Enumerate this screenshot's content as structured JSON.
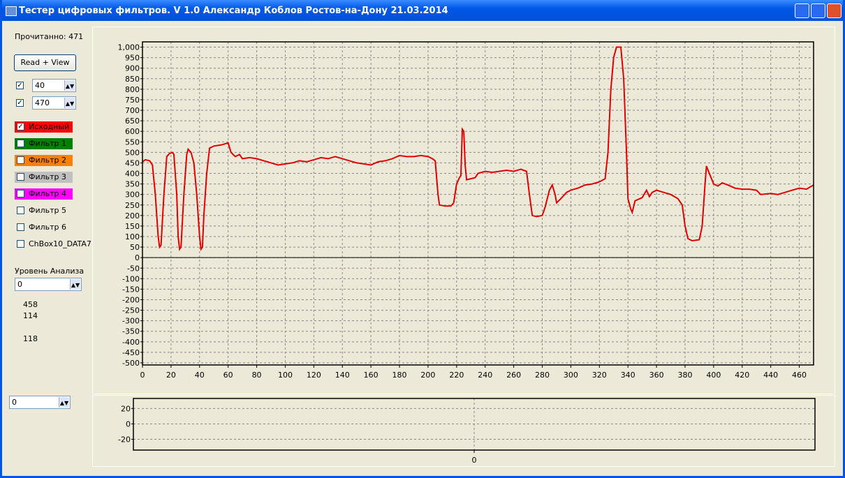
{
  "window": {
    "title": "Тестер цифровых фильтров. V 1.0 Александр Коблов Ростов-на-Дону 21.03.2014"
  },
  "panel": {
    "read_count": "Прочитанно: 471",
    "button": "Read + View",
    "spins": [
      {
        "checked": true,
        "value": "40"
      },
      {
        "checked": true,
        "value": "470"
      }
    ],
    "filters": [
      {
        "label": "Исходный",
        "color": "#ff0000",
        "checked": true
      },
      {
        "label": "Фильтр 1",
        "color": "#008000",
        "checked": false
      },
      {
        "label": "Фильтр 2",
        "color": "#ff8000",
        "checked": false
      },
      {
        "label": "Фильтр 3",
        "color": "#c0c0c0",
        "checked": false
      },
      {
        "label": "Фильтр 4",
        "color": "#ff00ff",
        "checked": false
      },
      {
        "label": "Фильтр 5",
        "color": null,
        "checked": false
      },
      {
        "label": "Фильтр 6",
        "color": null,
        "checked": false
      },
      {
        "label": "ChBox10_DATA7",
        "color": null,
        "checked": false
      }
    ],
    "level_label": "Уровень Анализа",
    "level_value": "0",
    "numbers": [
      "458",
      "114",
      "118"
    ],
    "bottom_value": "0"
  },
  "chart_data": [
    {
      "type": "line",
      "xlim": [
        0,
        470
      ],
      "ylim": [
        -510,
        1025
      ],
      "grid": true,
      "xticks": [
        0,
        20,
        40,
        60,
        80,
        100,
        120,
        140,
        160,
        180,
        200,
        220,
        240,
        260,
        280,
        300,
        320,
        340,
        360,
        380,
        400,
        420,
        440,
        460
      ],
      "yticks": [
        -500,
        -450,
        -400,
        -350,
        -300,
        -250,
        -200,
        -150,
        -100,
        -50,
        0,
        50,
        100,
        150,
        200,
        250,
        300,
        350,
        400,
        450,
        500,
        550,
        600,
        650,
        700,
        750,
        800,
        850,
        900,
        950,
        {
          "value": 1000,
          "label": "1,000"
        }
      ],
      "x": [
        0,
        2,
        5,
        7,
        9,
        11,
        12,
        13,
        15,
        17,
        19,
        21,
        22,
        24,
        25,
        26,
        27,
        29,
        31,
        32,
        34,
        36,
        38,
        40,
        41,
        42,
        43,
        45,
        47,
        50,
        55,
        60,
        62,
        65,
        68,
        70,
        75,
        80,
        85,
        90,
        95,
        100,
        105,
        110,
        115,
        120,
        125,
        130,
        135,
        140,
        145,
        150,
        155,
        160,
        165,
        170,
        175,
        180,
        185,
        190,
        195,
        200,
        203,
        205,
        207,
        208,
        212,
        216,
        218,
        220,
        222,
        223,
        224,
        225,
        226,
        227,
        230,
        233,
        235,
        240,
        245,
        250,
        255,
        260,
        265,
        269,
        271,
        273,
        276,
        280,
        282,
        285,
        287,
        289,
        290,
        293,
        297,
        300,
        305,
        310,
        315,
        320,
        324,
        326,
        328,
        330,
        332,
        335,
        337,
        339,
        340,
        342,
        343,
        345,
        350,
        353,
        355,
        357,
        360,
        365,
        370,
        375,
        378,
        380,
        382,
        385,
        390,
        392,
        394,
        395,
        397,
        400,
        403,
        406,
        410,
        415,
        420,
        425,
        430,
        433,
        440,
        445,
        450,
        455,
        460,
        465,
        470
      ],
      "series": [
        {
          "color": "#e00000",
          "values": [
            455,
            465,
            460,
            440,
            300,
            100,
            50,
            60,
            300,
            480,
            495,
            500,
            490,
            300,
            100,
            40,
            50,
            300,
            490,
            515,
            500,
            450,
            300,
            100,
            40,
            50,
            200,
            400,
            520,
            530,
            535,
            545,
            500,
            480,
            490,
            470,
            475,
            470,
            460,
            450,
            440,
            445,
            450,
            460,
            455,
            465,
            475,
            470,
            480,
            470,
            460,
            450,
            445,
            440,
            455,
            460,
            470,
            485,
            480,
            480,
            485,
            480,
            470,
            460,
            300,
            250,
            245,
            245,
            260,
            350,
            380,
            390,
            610,
            600,
            440,
            370,
            375,
            380,
            400,
            410,
            405,
            410,
            415,
            410,
            420,
            410,
            300,
            200,
            195,
            200,
            240,
            320,
            345,
            300,
            260,
            280,
            310,
            320,
            330,
            345,
            350,
            360,
            375,
            500,
            800,
            950,
            1000,
            1000,
            850,
            500,
            280,
            230,
            215,
            270,
            285,
            320,
            290,
            310,
            320,
            310,
            300,
            280,
            250,
            150,
            90,
            80,
            85,
            150,
            350,
            435,
            400,
            350,
            340,
            355,
            345,
            330,
            325,
            325,
            320,
            300,
            305,
            300,
            310,
            320,
            330,
            325,
            345
          ]
        }
      ]
    },
    {
      "type": "line",
      "xlim": [
        -1,
        1
      ],
      "ylim": [
        -34,
        33
      ],
      "grid": true,
      "xticks": [
        0
      ],
      "yticks": [
        -20,
        0,
        20
      ],
      "x": [],
      "series": []
    }
  ]
}
